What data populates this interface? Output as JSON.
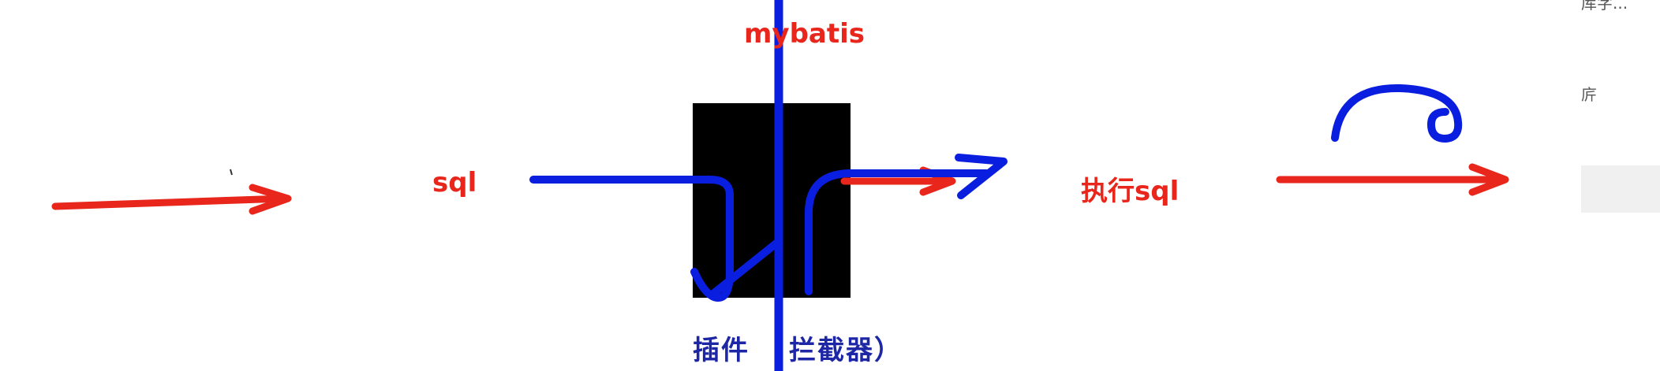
{
  "labels": {
    "mybatis": "mybatis",
    "sql": "sql",
    "execute_sql": "执行sql",
    "plugin_part1": "插件",
    "plugin_part2": "拦截器）"
  },
  "side_text": {
    "top": "库字...",
    "middle": "庍"
  },
  "colors": {
    "red": "#e8261c",
    "blue": "#0a1ee0",
    "label_blue": "#1d27a6",
    "block": "#000000"
  }
}
